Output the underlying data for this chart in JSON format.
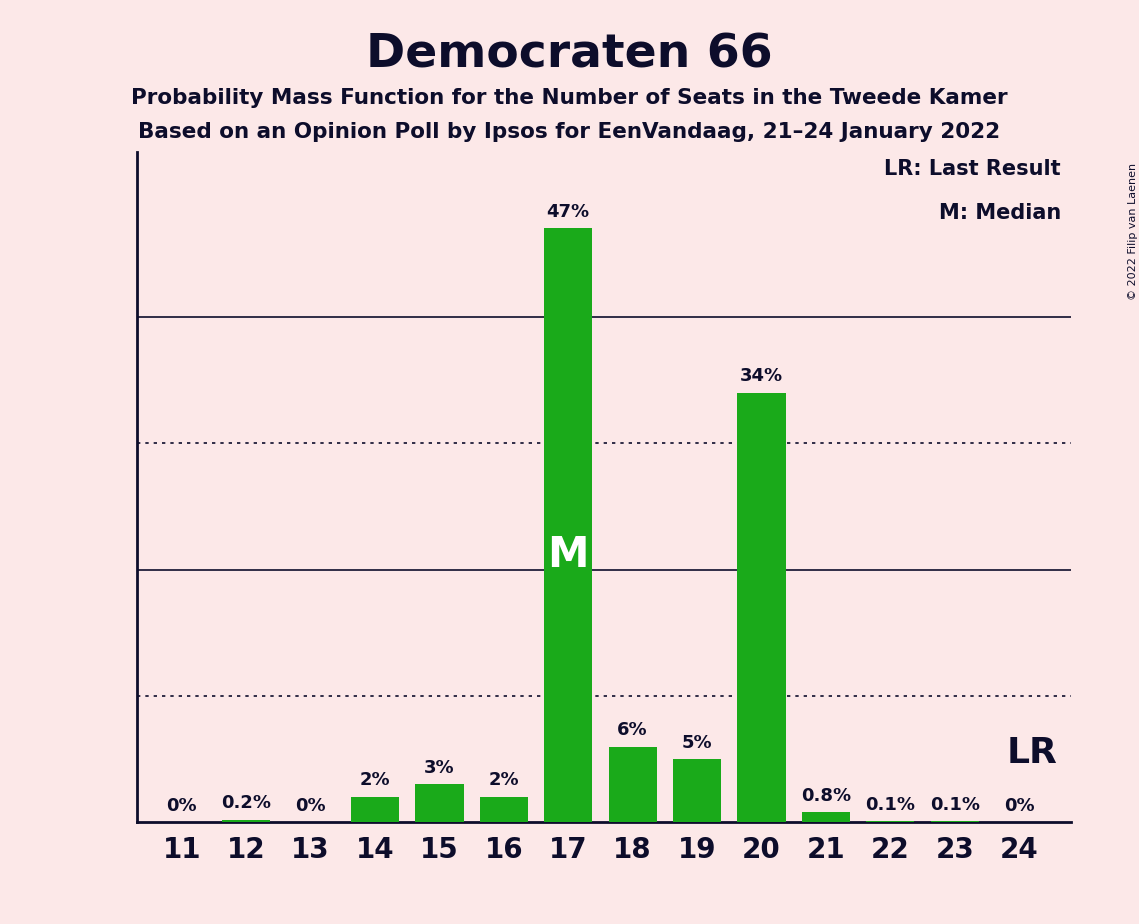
{
  "title": "Democraten 66",
  "subtitle1": "Probability Mass Function for the Number of Seats in the Tweede Kamer",
  "subtitle2": "Based on an Opinion Poll by Ipsos for EenVandaag, 21–24 January 2022",
  "copyright": "© 2022 Filip van Laenen",
  "seats": [
    11,
    12,
    13,
    14,
    15,
    16,
    17,
    18,
    19,
    20,
    21,
    22,
    23,
    24
  ],
  "probabilities": [
    0.0,
    0.2,
    0.0,
    2.0,
    3.0,
    2.0,
    47.0,
    6.0,
    5.0,
    34.0,
    0.8,
    0.1,
    0.1,
    0.0
  ],
  "labels": [
    "0%",
    "0.2%",
    "0%",
    "2%",
    "3%",
    "2%",
    "47%",
    "6%",
    "5%",
    "34%",
    "0.8%",
    "0.1%",
    "0.1%",
    "0%"
  ],
  "bar_color": "#1aaa1a",
  "background_color": "#fce8e8",
  "text_color": "#0d0d2b",
  "median_seat": 17,
  "last_result_seat": 24,
  "solid_yticks": [
    20,
    40
  ],
  "dotted_yticks": [
    10,
    30
  ],
  "ylim": [
    0,
    53
  ],
  "legend_lr": "LR: Last Result",
  "legend_m": "M: Median"
}
